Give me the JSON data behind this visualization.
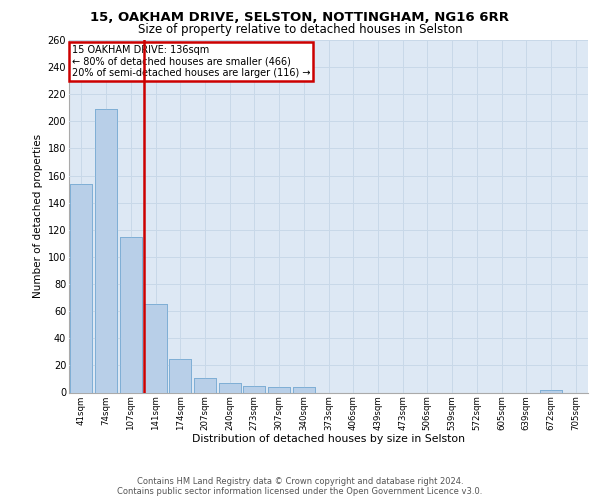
{
  "title1": "15, OAKHAM DRIVE, SELSTON, NOTTINGHAM, NG16 6RR",
  "title2": "Size of property relative to detached houses in Selston",
  "xlabel": "Distribution of detached houses by size in Selston",
  "ylabel": "Number of detached properties",
  "footer1": "Contains HM Land Registry data © Crown copyright and database right 2024.",
  "footer2": "Contains public sector information licensed under the Open Government Licence v3.0.",
  "annotation_line1": "15 OAKHAM DRIVE: 136sqm",
  "annotation_line2": "← 80% of detached houses are smaller (466)",
  "annotation_line3": "20% of semi-detached houses are larger (116) →",
  "bar_color": "#b8cfe8",
  "bar_edge_color": "#7aacd4",
  "grid_color": "#c8d8e8",
  "redline_color": "#cc0000",
  "annotation_box_color": "#cc0000",
  "bg_color": "#dde8f4",
  "fig_color": "#ffffff",
  "categories": [
    "41sqm",
    "74sqm",
    "107sqm",
    "141sqm",
    "174sqm",
    "207sqm",
    "240sqm",
    "273sqm",
    "307sqm",
    "340sqm",
    "373sqm",
    "406sqm",
    "439sqm",
    "473sqm",
    "506sqm",
    "539sqm",
    "572sqm",
    "605sqm",
    "639sqm",
    "672sqm",
    "705sqm"
  ],
  "values": [
    154,
    209,
    115,
    65,
    25,
    11,
    7,
    5,
    4,
    4,
    0,
    0,
    0,
    0,
    0,
    0,
    0,
    0,
    0,
    2,
    0
  ],
  "redline_index": 3,
  "ylim": [
    0,
    260
  ],
  "yticks": [
    0,
    20,
    40,
    60,
    80,
    100,
    120,
    140,
    160,
    180,
    200,
    220,
    240,
    260
  ]
}
